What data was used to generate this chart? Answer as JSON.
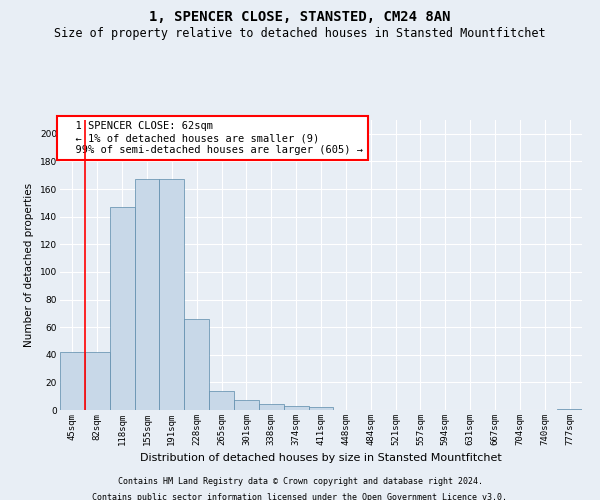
{
  "title": "1, SPENCER CLOSE, STANSTED, CM24 8AN",
  "subtitle": "Size of property relative to detached houses in Stansted Mountfitchet",
  "xlabel": "Distribution of detached houses by size in Stansted Mountfitchet",
  "ylabel": "Number of detached properties",
  "footer_line1": "Contains HM Land Registry data © Crown copyright and database right 2024.",
  "footer_line2": "Contains public sector information licensed under the Open Government Licence v3.0.",
  "categories": [
    "45sqm",
    "82sqm",
    "118sqm",
    "155sqm",
    "191sqm",
    "228sqm",
    "265sqm",
    "301sqm",
    "338sqm",
    "374sqm",
    "411sqm",
    "448sqm",
    "484sqm",
    "521sqm",
    "557sqm",
    "594sqm",
    "631sqm",
    "667sqm",
    "704sqm",
    "740sqm",
    "777sqm"
  ],
  "bar_values": [
    42,
    42,
    147,
    167,
    167,
    66,
    14,
    7,
    4,
    3,
    2,
    0,
    0,
    0,
    0,
    0,
    0,
    0,
    0,
    0,
    1
  ],
  "bar_color": "#c8d8e8",
  "bar_edge_color": "#5a8aaa",
  "ylim": [
    0,
    210
  ],
  "yticks": [
    0,
    20,
    40,
    60,
    80,
    100,
    120,
    140,
    160,
    180,
    200
  ],
  "annotation_box_text": "  1 SPENCER CLOSE: 62sqm\n  ← 1% of detached houses are smaller (9)\n  99% of semi-detached houses are larger (605) →",
  "background_color": "#e8eef5",
  "grid_color": "#ffffff",
  "title_fontsize": 10,
  "subtitle_fontsize": 8.5,
  "xlabel_fontsize": 8,
  "ylabel_fontsize": 7.5,
  "tick_fontsize": 6.5,
  "annotation_fontsize": 7.5,
  "footer_fontsize": 6
}
